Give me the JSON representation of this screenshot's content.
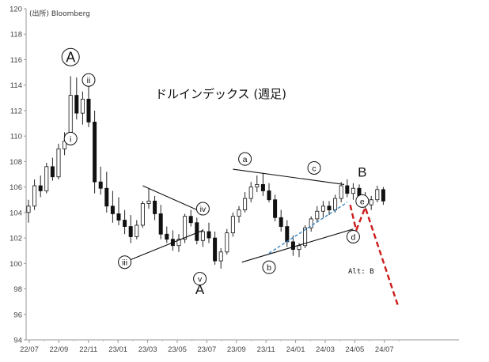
{
  "source": "(出所) Bloomberg",
  "title": "ドルインデックス (週足)",
  "alt_note": "Alt: B",
  "chart_data": {
    "type": "candlestick",
    "title": "ドルインデックス (週足)",
    "y_ticks": [
      94,
      96,
      98,
      100,
      102,
      104,
      106,
      108,
      110,
      112,
      114,
      116,
      118,
      120
    ],
    "x_ticks": [
      "22/07",
      "22/09",
      "22/11",
      "23/01",
      "23/03",
      "23/05",
      "23/07",
      "23/09",
      "23/11",
      "24/01",
      "24/03",
      "24/05",
      "24/07"
    ],
    "ylim": [
      94,
      120
    ],
    "grid": false,
    "wave_labels": [
      {
        "text": "A",
        "style": "circle-large",
        "week": 7,
        "price": 116.2
      },
      {
        "text": "ii",
        "style": "circle-small",
        "week": 10,
        "price": 114.4
      },
      {
        "text": "i",
        "style": "circle-small",
        "week": 7,
        "price": 109.8
      },
      {
        "text": "iii",
        "style": "circle-small",
        "week": 16,
        "price": 100.1
      },
      {
        "text": "iv",
        "style": "circle-small",
        "week": 29,
        "price": 104.3
      },
      {
        "text": "v",
        "style": "circle-small",
        "week": 28.5,
        "price": 98.8
      },
      {
        "text": "A",
        "style": "plain-large",
        "week": 28.5,
        "price": 97.6
      },
      {
        "text": "a",
        "style": "circle-small",
        "week": 36,
        "price": 108.2
      },
      {
        "text": "b",
        "style": "circle-small",
        "week": 40,
        "price": 99.7
      },
      {
        "text": "c",
        "style": "circle-small",
        "week": 47.5,
        "price": 107.5
      },
      {
        "text": "d",
        "style": "circle-small",
        "week": 54,
        "price": 102.1
      },
      {
        "text": "B",
        "style": "plain-large",
        "week": 55.5,
        "price": 106.8
      },
      {
        "text": "e",
        "style": "circle-small",
        "week": 55.5,
        "price": 104.9
      }
    ],
    "trendlines": [
      {
        "name": "triangle-upper",
        "style": "solid",
        "points": [
          [
            19,
            106.1
          ],
          [
            29,
            104.0
          ]
        ]
      },
      {
        "name": "triangle-lower",
        "style": "solid",
        "points": [
          [
            17,
            100.3
          ],
          [
            29,
            102.6
          ]
        ]
      },
      {
        "name": "range-upper",
        "style": "solid",
        "points": [
          [
            34,
            107.4
          ],
          [
            52.5,
            106.2
          ]
        ]
      },
      {
        "name": "range-lower",
        "style": "solid",
        "points": [
          [
            35.5,
            100.1
          ],
          [
            54,
            102.7
          ]
        ]
      },
      {
        "name": "support",
        "style": "dashed-blue",
        "points": [
          [
            40,
            100.8
          ],
          [
            53,
            104.8
          ]
        ]
      },
      {
        "name": "projection",
        "style": "dashed-red",
        "points": [
          [
            53.5,
            104.6
          ],
          [
            54.5,
            102.6
          ],
          [
            56,
            104.4
          ],
          [
            61.5,
            96.6
          ]
        ]
      }
    ],
    "candles": [
      [
        104.0,
        105.0,
        103.2,
        104.5
      ],
      [
        104.5,
        106.6,
        104.2,
        106.1
      ],
      [
        106.1,
        106.9,
        105.2,
        105.7
      ],
      [
        105.7,
        107.9,
        105.5,
        107.6
      ],
      [
        107.6,
        108.3,
        106.5,
        106.8
      ],
      [
        106.8,
        109.4,
        106.6,
        109.0
      ],
      [
        109.0,
        110.3,
        108.5,
        109.6
      ],
      [
        109.6,
        114.7,
        109.5,
        113.2
      ],
      [
        113.2,
        114.6,
        111.3,
        111.8
      ],
      [
        111.8,
        113.5,
        110.9,
        112.9
      ],
      [
        112.9,
        113.9,
        110.7,
        111.1
      ],
      [
        111.1,
        112.0,
        105.5,
        106.4
      ],
      [
        106.4,
        107.6,
        105.4,
        105.9
      ],
      [
        105.9,
        107.2,
        104.0,
        104.5
      ],
      [
        104.5,
        105.7,
        103.2,
        103.9
      ],
      [
        103.9,
        105.2,
        103.0,
        103.4
      ],
      [
        103.4,
        104.2,
        102.3,
        102.9
      ],
      [
        102.9,
        103.8,
        101.6,
        102.1
      ],
      [
        102.1,
        103.4,
        101.9,
        103.0
      ],
      [
        103.0,
        104.9,
        102.8,
        104.7
      ],
      [
        104.7,
        105.9,
        104.3,
        104.9
      ],
      [
        104.9,
        105.3,
        103.4,
        103.9
      ],
      [
        103.9,
        104.6,
        101.9,
        102.3
      ],
      [
        102.3,
        102.9,
        101.6,
        101.9
      ],
      [
        101.9,
        102.6,
        101.0,
        101.4
      ],
      [
        101.4,
        102.3,
        100.9,
        101.9
      ],
      [
        101.9,
        103.9,
        101.6,
        103.7
      ],
      [
        103.7,
        104.2,
        102.9,
        103.2
      ],
      [
        103.2,
        103.6,
        101.5,
        101.8
      ],
      [
        101.8,
        102.7,
        101.3,
        102.5
      ],
      [
        102.5,
        103.2,
        101.6,
        102.0
      ],
      [
        102.0,
        102.5,
        99.9,
        100.2
      ],
      [
        100.2,
        101.2,
        99.6,
        100.9
      ],
      [
        100.9,
        102.7,
        100.7,
        102.4
      ],
      [
        102.4,
        104.0,
        102.1,
        103.7
      ],
      [
        103.7,
        104.5,
        103.2,
        104.2
      ],
      [
        104.2,
        105.6,
        104.0,
        105.1
      ],
      [
        105.1,
        106.4,
        104.8,
        106.0
      ],
      [
        106.0,
        106.9,
        105.6,
        106.2
      ],
      [
        106.2,
        107.1,
        105.3,
        105.7
      ],
      [
        105.7,
        106.3,
        104.8,
        105.0
      ],
      [
        105.0,
        105.4,
        103.3,
        103.6
      ],
      [
        103.6,
        104.2,
        102.5,
        102.9
      ],
      [
        102.9,
        103.4,
        101.3,
        101.7
      ],
      [
        101.7,
        102.2,
        100.6,
        101.1
      ],
      [
        101.1,
        101.6,
        100.5,
        101.4
      ],
      [
        101.4,
        103.0,
        101.2,
        102.8
      ],
      [
        102.8,
        103.7,
        102.5,
        103.5
      ],
      [
        103.5,
        104.5,
        103.2,
        104.1
      ],
      [
        104.1,
        104.9,
        103.6,
        104.5
      ],
      [
        104.5,
        104.9,
        103.8,
        104.2
      ],
      [
        104.2,
        105.4,
        104.0,
        105.1
      ],
      [
        105.1,
        106.4,
        104.8,
        106.1
      ],
      [
        106.1,
        106.6,
        105.2,
        105.5
      ],
      [
        105.5,
        106.3,
        105.0,
        105.9
      ],
      [
        105.9,
        106.2,
        104.8,
        105.1
      ],
      [
        105.1,
        105.6,
        104.3,
        104.6
      ],
      [
        104.6,
        105.3,
        104.2,
        105.0
      ],
      [
        105.0,
        106.1,
        104.8,
        105.8
      ],
      [
        105.8,
        106.0,
        104.6,
        104.9
      ]
    ]
  }
}
